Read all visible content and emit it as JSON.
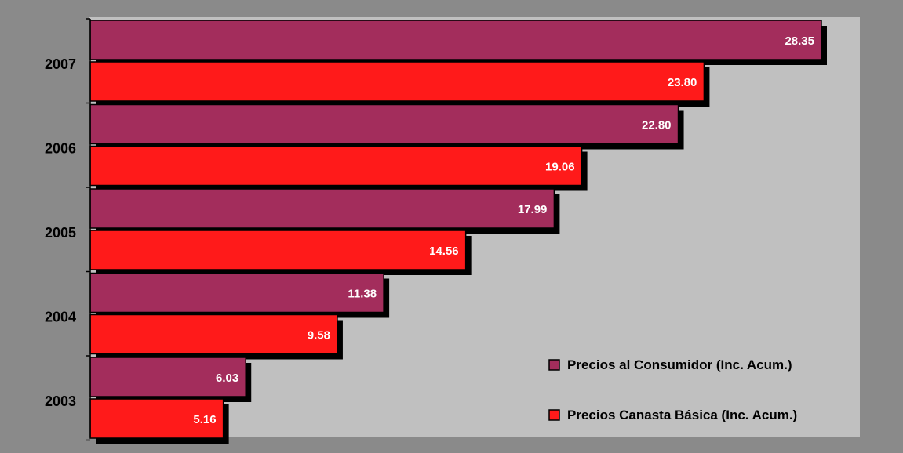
{
  "chart_data": {
    "type": "bar",
    "orientation": "horizontal",
    "categories": [
      "2007",
      "2006",
      "2005",
      "2004",
      "2003"
    ],
    "series": [
      {
        "name": "Precios al Consumidor (Inc. Acum.)",
        "color": "#a32d5c",
        "values": [
          28.35,
          22.8,
          17.99,
          11.38,
          6.03
        ],
        "labels": [
          "28.35",
          "22.80",
          "17.99",
          "11.38",
          "6.03"
        ]
      },
      {
        "name": "Precios Canasta Básica (Inc. Acum.)",
        "color": "#ff1a1a",
        "values": [
          23.8,
          19.06,
          14.56,
          9.58,
          5.16
        ],
        "labels": [
          "23.80",
          "19.06",
          "14.56",
          "9.58",
          "5.16"
        ]
      }
    ],
    "xlim": [
      0,
      30
    ],
    "grid": false,
    "legend_position": "bottom-right",
    "plot_background": "#c0c0c0",
    "page_background": "#8a8a8a"
  }
}
